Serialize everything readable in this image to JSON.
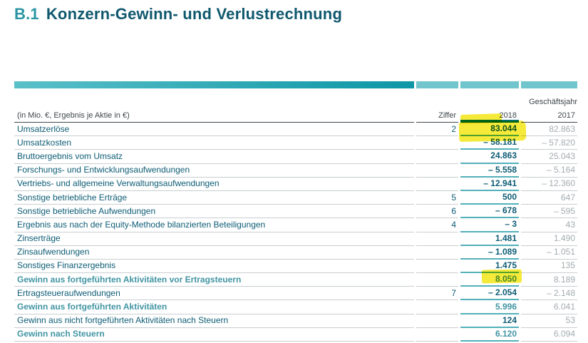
{
  "title": {
    "prefix": "B.1",
    "text": "Konzern-Gewinn- und Verlustrechnung"
  },
  "table": {
    "fiscal_year_label": "Geschäftsjahr",
    "columns": {
      "label": "(in Mio. €, Ergebnis je Aktie in €)",
      "ziffer": "Ziffer",
      "y2018": "2018",
      "y2017": "2017"
    },
    "rows": [
      {
        "label": "Umsatzerlöse",
        "ziffer": "2",
        "y2018": "83.044",
        "y2017": "82.863",
        "bold": false
      },
      {
        "label": "Umsatzkosten",
        "ziffer": "",
        "y2018": "– 58.181",
        "y2017": "– 57.820",
        "bold": false
      },
      {
        "label": "Bruttoergebnis vom Umsatz",
        "ziffer": "",
        "y2018": "24.863",
        "y2017": "25.043",
        "bold": false
      },
      {
        "label": "Forschungs- und Entwicklungsaufwendungen",
        "ziffer": "",
        "y2018": "– 5.558",
        "y2017": "– 5.164",
        "bold": false
      },
      {
        "label": "Vertriebs- und allgemeine Verwaltungsaufwendungen",
        "ziffer": "",
        "y2018": "– 12.941",
        "y2017": "– 12.360",
        "bold": false
      },
      {
        "label": "Sonstige betriebliche Erträge",
        "ziffer": "5",
        "y2018": "500",
        "y2017": "647",
        "bold": false
      },
      {
        "label": "Sonstige betriebliche Aufwendungen",
        "ziffer": "6",
        "y2018": "– 678",
        "y2017": "– 595",
        "bold": false
      },
      {
        "label": "Ergebnis aus nach der Equity-Methode bilanzierten Beteiligungen",
        "ziffer": "4",
        "y2018": "– 3",
        "y2017": "43",
        "bold": false
      },
      {
        "label": "Zinserträge",
        "ziffer": "",
        "y2018": "1.481",
        "y2017": "1.490",
        "bold": false
      },
      {
        "label": "Zinsaufwendungen",
        "ziffer": "",
        "y2018": "– 1.089",
        "y2017": "– 1.051",
        "bold": false
      },
      {
        "label": "Sonstiges Finanzergebnis",
        "ziffer": "",
        "y2018": "1.475",
        "y2017": "135",
        "bold": false
      },
      {
        "label": "Gewinn aus fortgeführten Aktivitäten vor Ertragsteuern",
        "ziffer": "",
        "y2018": "8.050",
        "y2017": "8.189",
        "bold": true
      },
      {
        "label": "Ertragsteueraufwendungen",
        "ziffer": "7",
        "y2018": "– 2.054",
        "y2017": "– 2.148",
        "bold": false
      },
      {
        "label": "Gewinn aus fortgeführten Aktivitäten",
        "ziffer": "",
        "y2018": "5.996",
        "y2017": "6.041",
        "bold": true
      },
      {
        "label": "Gewinn aus nicht fortgeführten Aktivitäten nach Steuern",
        "ziffer": "",
        "y2018": "124",
        "y2017": "53",
        "bold": false
      },
      {
        "label": "Gewinn nach Steuern",
        "ziffer": "",
        "y2018": "6.120",
        "y2017": "6.094",
        "bold": true
      }
    ],
    "highlighted_values": [
      "2018",
      "83.044",
      "8.050"
    ]
  },
  "colors": {
    "title_prefix": "#2b95a4",
    "title_text": "#0f586e",
    "label_text": "#0d5c75",
    "bold_row_text": "#4195a3",
    "prior_year_text": "#a3acb0",
    "header_text": "#3f474b",
    "row_border": "#c9cdd0",
    "current_year_border": "#52b0ba",
    "header_thick_line": "#006f7e",
    "bar_gradient_start": "#5ac0c8",
    "bar_gradient_end": "#0d96a6",
    "bar_light_segment": "#70c6cc",
    "marker_highlight": "#f5e829"
  }
}
